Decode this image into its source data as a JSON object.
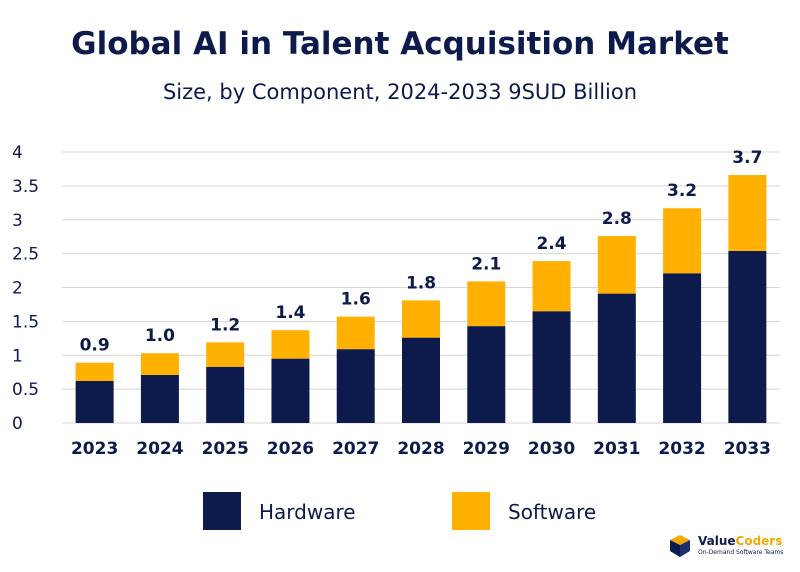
{
  "chart_data": {
    "type": "bar",
    "stacked": true,
    "title": "Global AI in Talent Acquisition Market",
    "subtitle": "Size, by Component, 2024-2033 9SUD Billion",
    "xlabel": "",
    "ylabel": "",
    "ylim": [
      0,
      4
    ],
    "yticks": [
      "0",
      "0.5",
      "1",
      "1.5",
      "2",
      "2.5",
      "3",
      "3.5",
      "4"
    ],
    "grid": true,
    "legend_position": "bottom",
    "categories": [
      "2023",
      "2024",
      "2025",
      "2026",
      "2027",
      "2028",
      "2029",
      "2030",
      "2031",
      "2032",
      "2033"
    ],
    "series": [
      {
        "name": "Hardware",
        "color": "#0d1b4c",
        "values": [
          0.62,
          0.71,
          0.83,
          0.95,
          1.09,
          1.26,
          1.43,
          1.65,
          1.91,
          2.21,
          2.54
        ]
      },
      {
        "name": "Software",
        "color": "#ffb000",
        "values": [
          0.27,
          0.32,
          0.36,
          0.42,
          0.48,
          0.55,
          0.66,
          0.74,
          0.85,
          0.96,
          1.12
        ]
      }
    ],
    "totals": [
      "0.9",
      "1.0",
      "1.2",
      "1.4",
      "1.6",
      "1.8",
      "2.1",
      "2.4",
      "2.8",
      "3.2",
      "3.7"
    ]
  },
  "logo": {
    "name_part1": "Value",
    "name_part2": "Coders",
    "tagline": "On-Demand Software Teams",
    "icon": "valuecoders-logo-icon"
  }
}
